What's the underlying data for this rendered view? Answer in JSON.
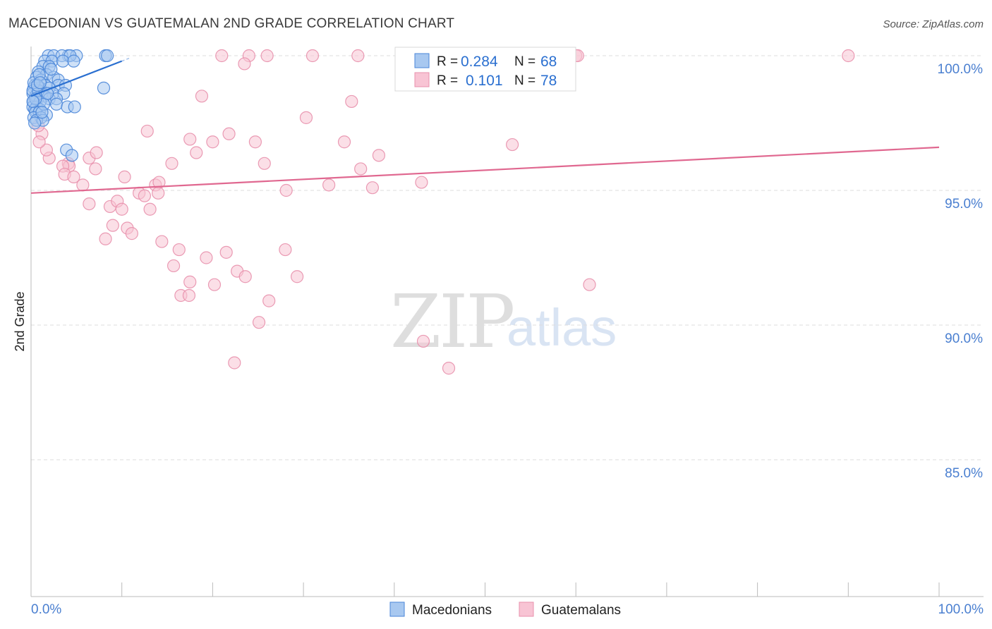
{
  "chart_data": {
    "type": "scatter",
    "title": "MACEDONIAN VS GUATEMALAN 2ND GRADE CORRELATION CHART",
    "source": "Source: ZipAtlas.com",
    "ylabel": "2nd Grade",
    "xlabel": "",
    "xlim": [
      0,
      100
    ],
    "ylim": [
      80.5,
      100.9
    ],
    "y_ticks": [
      {
        "value": 100,
        "label": "100.0%"
      },
      {
        "value": 95,
        "label": "95.0%"
      },
      {
        "value": 90,
        "label": "90.0%"
      },
      {
        "value": 85,
        "label": "85.0%"
      }
    ],
    "x_tick_labels": {
      "left": "0.0%",
      "right": "100.0%"
    },
    "watermark": {
      "zip": "ZIP",
      "atlas": "atlas"
    },
    "colors": {
      "macedonians_fill": "#a8c8f0",
      "macedonians_stroke": "#4a86d8",
      "macedonians_line": "#2a6fd0",
      "guatemalans_fill": "#f8c4d4",
      "guatemalans_stroke": "#e890ac",
      "guatemalans_line": "#e06890",
      "accent_text": "#2a6fd0"
    },
    "legend": {
      "r_label": "R =",
      "n_label": "N =",
      "entries": [
        {
          "series": "Macedonians",
          "r": "0.284",
          "n": "68"
        },
        {
          "series": "Guatemalans",
          "r": "0.101",
          "n": "78"
        }
      ]
    },
    "series": [
      {
        "name": "Macedonians",
        "trend": {
          "x0": 0,
          "y0": 98.5,
          "x1": 10,
          "y1": 99.8,
          "dash_x1": 11
        },
        "points": [
          [
            4.1,
            100
          ],
          [
            5.0,
            100
          ],
          [
            1.9,
            100
          ],
          [
            2.5,
            100
          ],
          [
            3.4,
            100
          ],
          [
            4.3,
            100
          ],
          [
            8.2,
            100
          ],
          [
            8.4,
            100
          ],
          [
            1.5,
            99.8
          ],
          [
            2.3,
            99.8
          ],
          [
            3.5,
            99.8
          ],
          [
            4.7,
            99.8
          ],
          [
            1.3,
            99.6
          ],
          [
            2.0,
            99.6
          ],
          [
            0.8,
            99.4
          ],
          [
            1.7,
            99.3
          ],
          [
            2.5,
            99.2
          ],
          [
            0.6,
            99.2
          ],
          [
            1.1,
            99.1
          ],
          [
            3.0,
            99.1
          ],
          [
            0.4,
            98.9
          ],
          [
            1.6,
            98.9
          ],
          [
            3.0,
            98.9
          ],
          [
            3.8,
            98.9
          ],
          [
            0.3,
            98.8
          ],
          [
            1.0,
            98.8
          ],
          [
            2.0,
            98.8
          ],
          [
            8.0,
            98.8
          ],
          [
            0.2,
            98.6
          ],
          [
            1.2,
            98.6
          ],
          [
            2.4,
            98.6
          ],
          [
            3.6,
            98.6
          ],
          [
            0.5,
            98.5
          ],
          [
            1.5,
            98.5
          ],
          [
            0.7,
            98.4
          ],
          [
            2.0,
            98.4
          ],
          [
            2.8,
            98.4
          ],
          [
            0.3,
            98.3
          ],
          [
            1.0,
            98.3
          ],
          [
            2.8,
            98.2
          ],
          [
            0.2,
            98.1
          ],
          [
            0.6,
            98.1
          ],
          [
            4.0,
            98.1
          ],
          [
            4.8,
            98.1
          ],
          [
            0.4,
            98.0
          ],
          [
            1.0,
            98.0
          ],
          [
            0.5,
            97.9
          ],
          [
            0.9,
            97.9
          ],
          [
            1.7,
            97.8
          ],
          [
            0.3,
            97.7
          ],
          [
            1.1,
            97.7
          ],
          [
            0.6,
            97.6
          ],
          [
            1.3,
            97.6
          ],
          [
            0.2,
            98.7
          ],
          [
            0.8,
            98.7
          ],
          [
            1.4,
            98.2
          ],
          [
            0.3,
            99.0
          ],
          [
            0.9,
            99.3
          ],
          [
            2.2,
            99.5
          ],
          [
            0.5,
            98.4
          ],
          [
            1.2,
            97.9
          ],
          [
            0.7,
            98.9
          ],
          [
            3.9,
            96.5
          ],
          [
            4.5,
            96.3
          ],
          [
            0.4,
            97.5
          ],
          [
            0.2,
            98.3
          ],
          [
            1.8,
            98.6
          ],
          [
            1.0,
            99.0
          ]
        ]
      },
      {
        "name": "Guatemalans",
        "trend": {
          "x0": 0,
          "y0": 94.9,
          "x1": 100,
          "y1": 96.6
        },
        "points": [
          [
            21.0,
            100
          ],
          [
            24.0,
            100
          ],
          [
            26.0,
            100
          ],
          [
            31.0,
            100
          ],
          [
            36.0,
            100
          ],
          [
            46.0,
            100
          ],
          [
            57.0,
            100
          ],
          [
            60.0,
            100
          ],
          [
            60.2,
            100
          ],
          [
            90.0,
            100
          ],
          [
            23.5,
            99.7
          ],
          [
            18.8,
            98.5
          ],
          [
            35.3,
            98.3
          ],
          [
            30.3,
            97.7
          ],
          [
            12.8,
            97.2
          ],
          [
            17.5,
            96.9
          ],
          [
            21.8,
            97.1
          ],
          [
            24.7,
            96.8
          ],
          [
            34.5,
            96.8
          ],
          [
            53.0,
            96.7
          ],
          [
            38.3,
            96.3
          ],
          [
            25.7,
            96.0
          ],
          [
            36.3,
            95.8
          ],
          [
            10.3,
            95.5
          ],
          [
            15.5,
            96.0
          ],
          [
            18.2,
            96.4
          ],
          [
            20.0,
            96.8
          ],
          [
            6.4,
            96.2
          ],
          [
            7.2,
            96.4
          ],
          [
            4.1,
            96.0
          ],
          [
            4.2,
            95.9
          ],
          [
            3.5,
            95.9
          ],
          [
            2.0,
            96.2
          ],
          [
            1.7,
            96.5
          ],
          [
            3.7,
            95.6
          ],
          [
            4.7,
            95.5
          ],
          [
            5.7,
            95.2
          ],
          [
            7.1,
            95.8
          ],
          [
            11.9,
            94.9
          ],
          [
            12.5,
            94.8
          ],
          [
            13.7,
            95.2
          ],
          [
            14.1,
            95.3
          ],
          [
            28.1,
            95.0
          ],
          [
            32.8,
            95.2
          ],
          [
            37.6,
            95.1
          ],
          [
            43.0,
            95.3
          ],
          [
            6.4,
            94.5
          ],
          [
            8.7,
            94.4
          ],
          [
            9.5,
            94.6
          ],
          [
            10.0,
            94.3
          ],
          [
            13.1,
            94.3
          ],
          [
            14.0,
            94.9
          ],
          [
            8.2,
            93.2
          ],
          [
            9.0,
            93.7
          ],
          [
            10.6,
            93.6
          ],
          [
            11.1,
            93.4
          ],
          [
            14.4,
            93.1
          ],
          [
            16.3,
            92.8
          ],
          [
            19.3,
            92.5
          ],
          [
            21.5,
            92.7
          ],
          [
            28.0,
            92.8
          ],
          [
            15.7,
            92.2
          ],
          [
            22.7,
            92.0
          ],
          [
            23.6,
            91.8
          ],
          [
            29.3,
            91.8
          ],
          [
            17.5,
            91.6
          ],
          [
            20.2,
            91.5
          ],
          [
            61.5,
            91.5
          ],
          [
            16.5,
            91.1
          ],
          [
            17.4,
            91.1
          ],
          [
            26.2,
            90.9
          ],
          [
            25.1,
            90.1
          ],
          [
            43.2,
            89.4
          ],
          [
            22.4,
            88.6
          ],
          [
            46.0,
            88.4
          ],
          [
            1.2,
            97.1
          ],
          [
            0.8,
            97.4
          ],
          [
            0.9,
            96.8
          ]
        ]
      }
    ]
  }
}
